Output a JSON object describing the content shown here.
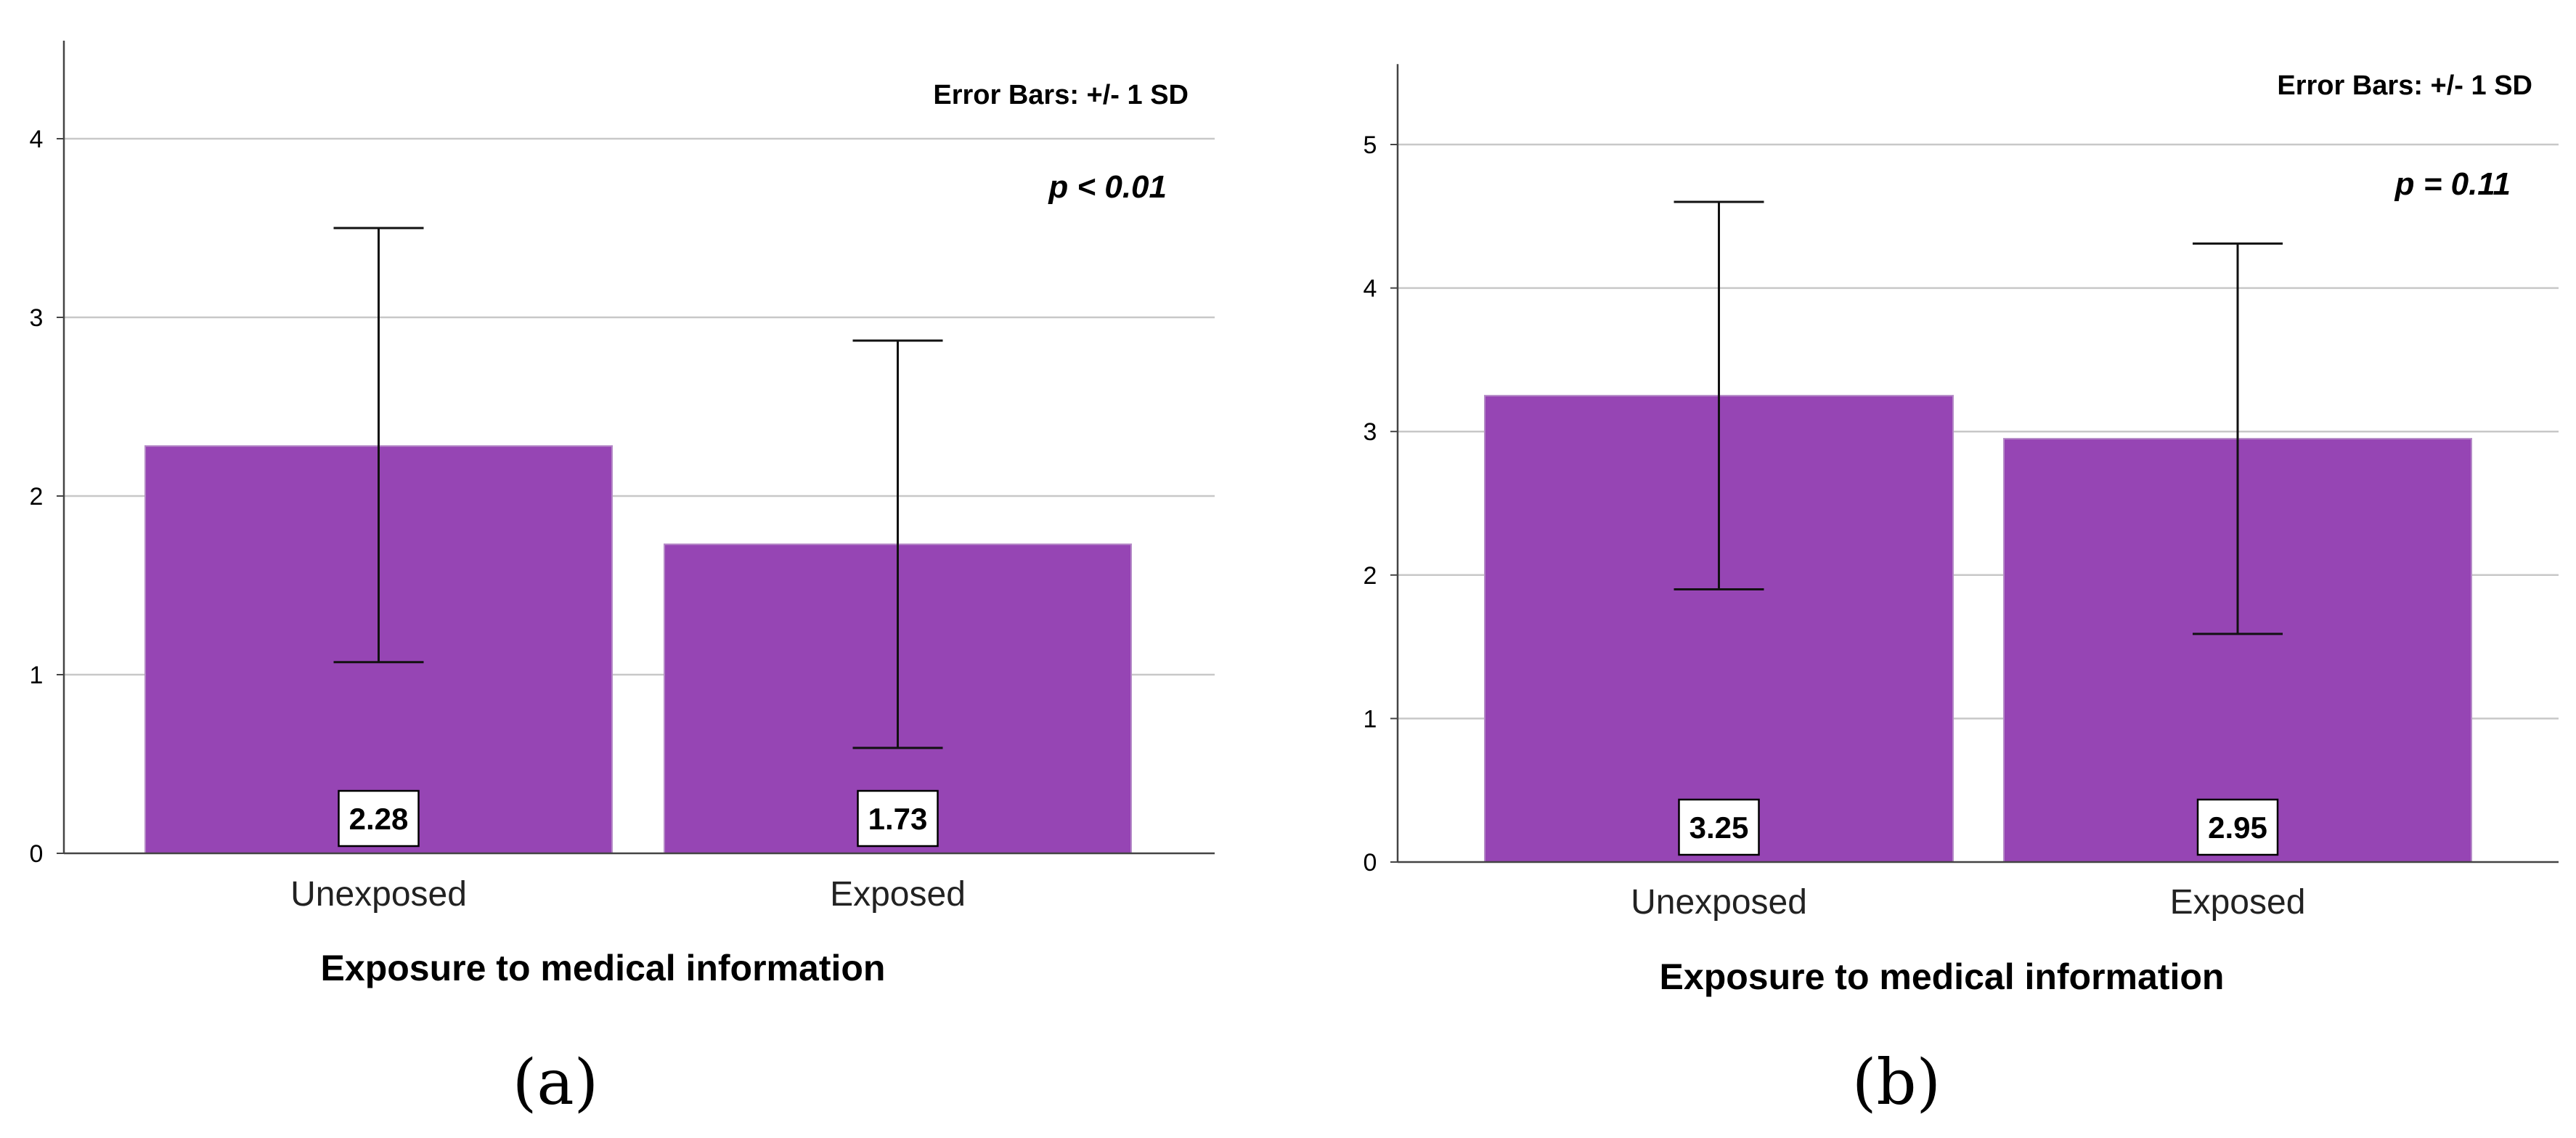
{
  "chart_data": [
    {
      "type": "bar",
      "panel_label": "(a)",
      "categories": [
        "Unexposed",
        "Exposed"
      ],
      "values": [
        2.28,
        1.73
      ],
      "value_labels": [
        "2.28",
        "1.73"
      ],
      "error_bars": {
        "lower": [
          1.07,
          0.59
        ],
        "upper": [
          3.5,
          2.87
        ]
      },
      "error_note": "Error Bars: +/- 1 SD",
      "annotation": "p < 0.01",
      "xlabel": "Exposure to medical information",
      "ylabel": "",
      "ylim": [
        0,
        4.5
      ],
      "yticks": [
        0,
        1,
        2,
        3,
        4
      ],
      "grid": true,
      "bar_color": "#9645b4"
    },
    {
      "type": "bar",
      "panel_label": "(b)",
      "categories": [
        "Unexposed",
        "Exposed"
      ],
      "values": [
        3.25,
        2.95
      ],
      "value_labels": [
        "3.25",
        "2.95"
      ],
      "error_bars": {
        "lower": [
          1.9,
          1.59
        ],
        "upper": [
          4.6,
          4.31
        ]
      },
      "error_note": "Error Bars: +/- 1 SD",
      "annotation": "p = 0.11",
      "xlabel": "Exposure to medical information",
      "ylabel": "",
      "ylim": [
        0,
        5.5
      ],
      "yticks": [
        0,
        1,
        2,
        3,
        4,
        5
      ],
      "grid": true,
      "bar_color": "#9645b4"
    }
  ]
}
